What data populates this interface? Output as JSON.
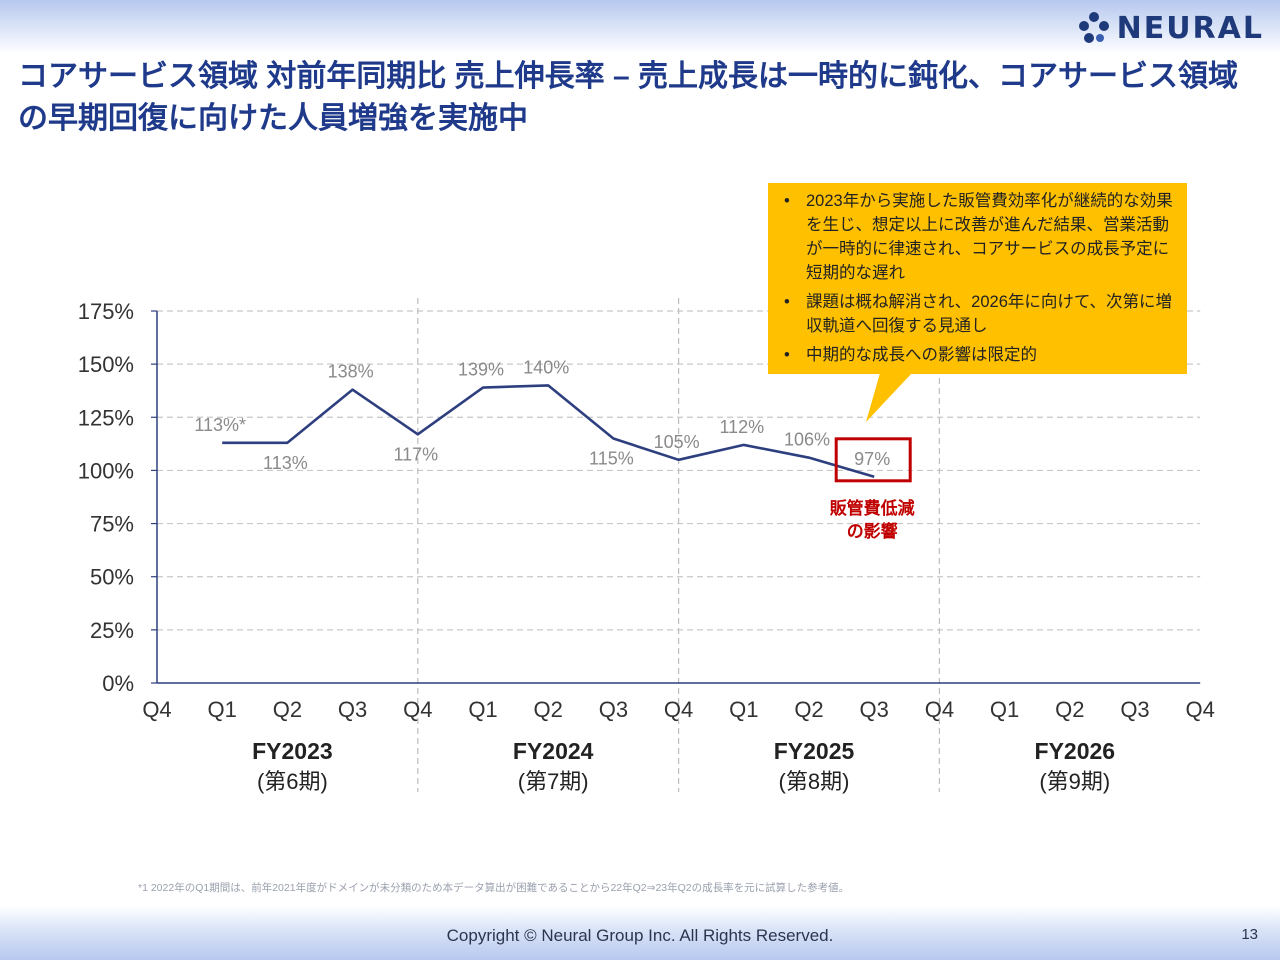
{
  "header": {
    "title": "コアサービス領域 対前年同期比 売上伸長率 – 売上成長は一時的に鈍化、コアサービス領域の早期回復に向けた人員増強を実施中",
    "logo_text": "NEURAL",
    "logo_icon": "cluster-dots-icon"
  },
  "chart_data": {
    "type": "line",
    "x_ticks": [
      "Q4",
      "Q1",
      "Q2",
      "Q3",
      "Q4",
      "Q1",
      "Q2",
      "Q3",
      "Q4",
      "Q1",
      "Q2",
      "Q3",
      "Q4",
      "Q1",
      "Q2",
      "Q3",
      "Q4"
    ],
    "y_ticks": [
      "0%",
      "25%",
      "50%",
      "75%",
      "100%",
      "125%",
      "150%",
      "175%"
    ],
    "ylim": [
      0,
      175
    ],
    "grid": true,
    "line_color": "#2e3f7f",
    "series": [
      {
        "values": [
          113,
          113,
          138,
          117,
          139,
          140,
          115,
          105,
          112,
          106,
          97
        ]
      }
    ],
    "series_x_index": [
      1,
      2,
      3,
      4,
      5,
      6,
      7,
      8,
      9,
      10,
      11
    ],
    "data_labels": [
      "113%*",
      "113%",
      "138%",
      "117%",
      "139%",
      "140%",
      "115%",
      "105%",
      "112%",
      "106%",
      "97%"
    ],
    "label_above": [
      true,
      false,
      true,
      false,
      true,
      true,
      false,
      true,
      true,
      true,
      true
    ],
    "fiscal_years": [
      {
        "label": "FY2023",
        "sublabel": "(第6期)"
      },
      {
        "label": "FY2024",
        "sublabel": "(第7期)"
      },
      {
        "label": "FY2025",
        "sublabel": "(第8期)"
      },
      {
        "label": "FY2026",
        "sublabel": "(第9期)"
      }
    ],
    "highlight": {
      "index": 10,
      "color": "#c00000",
      "label_line1": "販管費低減",
      "label_line2": "の影響"
    }
  },
  "callout": {
    "color": "#ffc000",
    "bullets": [
      "2023年から実施した販管費効率化が継続的な効果を生じ、想定以上に改善が進んだ結果、営業活動が一時的に律速され、コアサービスの成長予定に短期的な遅れ",
      "課題は概ね解消され、2026年に向けて、次第に増収軌道へ回復する見通し",
      "中期的な成長への影響は限定的"
    ]
  },
  "footnote": "*1 2022年のQ1期間は、前年2021年度がドメインが未分類のため本データ算出が困難であることから22年Q2⇒23年Q2の成長率を元に試算した参考値。",
  "footer": {
    "copyright": "Copyright © Neural Group Inc. All Rights Reserved.",
    "page": "13"
  }
}
